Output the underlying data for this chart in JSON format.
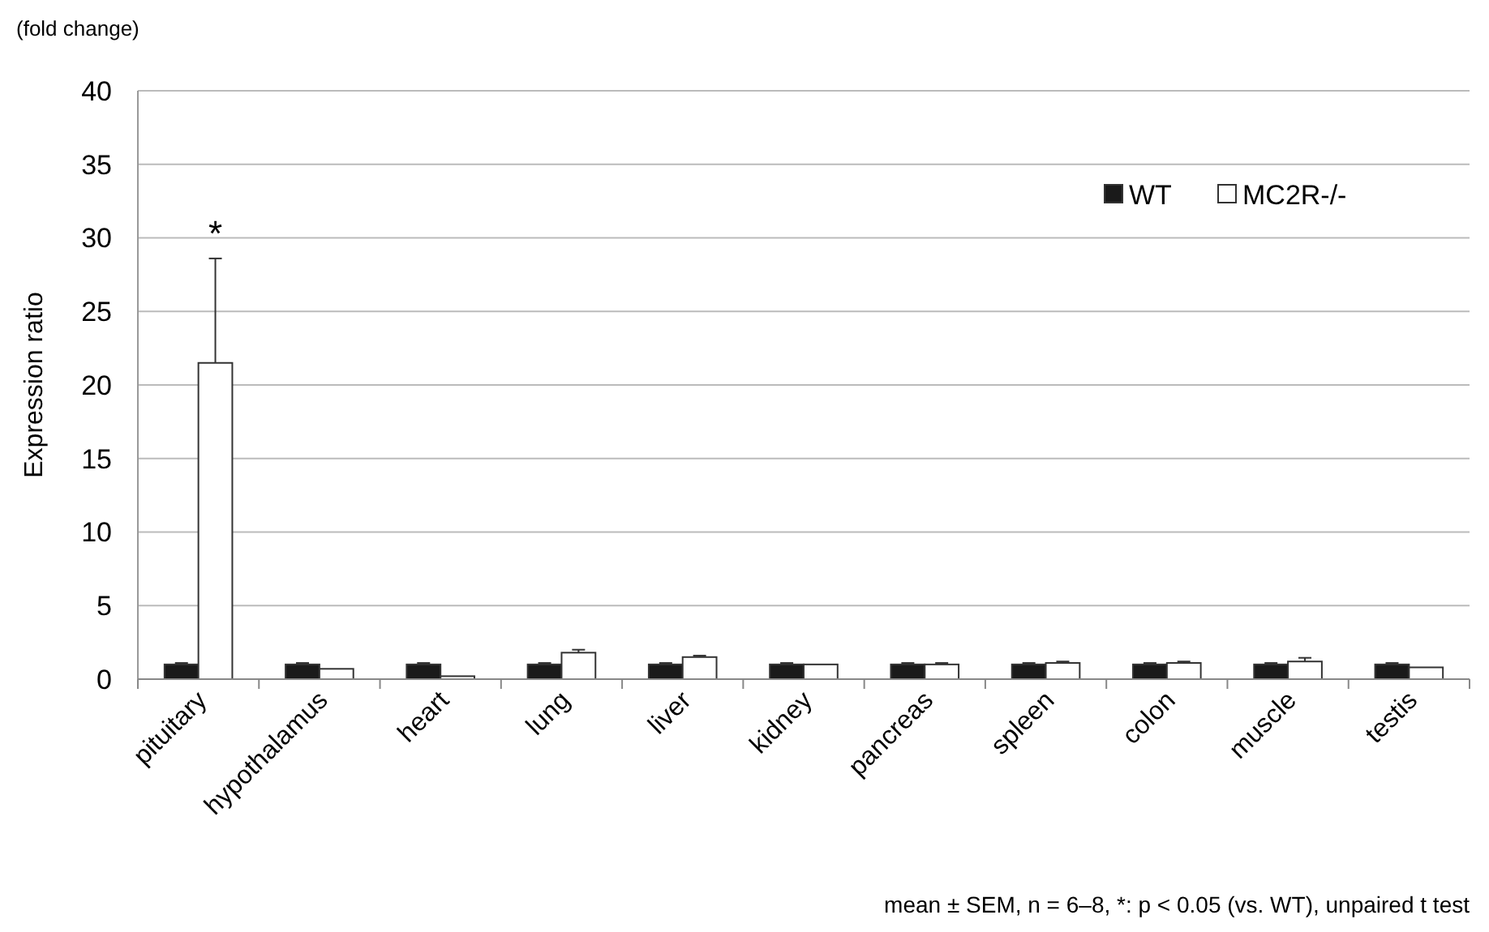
{
  "chart_data": {
    "type": "bar",
    "ylabel": "Expression ratio",
    "categories": [
      "pituitary",
      "hypothalamus",
      "heart",
      "lung",
      "liver",
      "kidney",
      "pancreas",
      "spleen",
      "colon",
      "muscle",
      "testis"
    ],
    "series": [
      {
        "name": "WT",
        "color": "#1a1a1a",
        "values": [
          1.0,
          1.0,
          1.0,
          1.0,
          1.0,
          1.0,
          1.0,
          1.0,
          1.0,
          1.0,
          1.0
        ],
        "errors": [
          0.1,
          0.1,
          0.1,
          0.1,
          0.1,
          0.1,
          0.1,
          0.1,
          0.1,
          0.1,
          0.1
        ]
      },
      {
        "name": "MC2R-/-",
        "color": "#ffffff",
        "values": [
          21.5,
          0.7,
          0.2,
          1.8,
          1.5,
          1.0,
          1.0,
          1.1,
          1.1,
          1.2,
          0.8
        ],
        "errors": [
          7.1,
          null,
          null,
          0.2,
          0.1,
          null,
          0.1,
          0.1,
          0.1,
          0.25,
          null
        ]
      }
    ],
    "ylim": [
      0,
      40
    ],
    "yticks": [
      0,
      5,
      10,
      15,
      20,
      25,
      30,
      35,
      40
    ],
    "grid": "y",
    "legend": "top right",
    "annotations": [
      "(fold change)",
      "*",
      "mean ± SEM, n = 6–8, *: p < 0.05 (vs. WT), unpaired t test"
    ]
  }
}
